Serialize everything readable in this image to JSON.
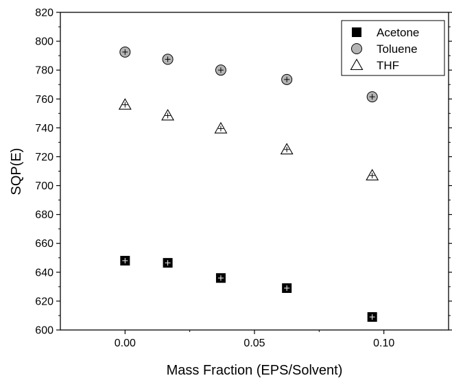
{
  "chart_data": {
    "type": "scatter",
    "title": "",
    "xlabel": "Mass Fraction (EPS/Solvent)",
    "ylabel": "SQP(E)",
    "xlim": [
      -0.025,
      0.125
    ],
    "ylim": [
      600,
      820
    ],
    "xticks": [
      0.0,
      0.05,
      0.1
    ],
    "xtick_labels": [
      "0.00",
      "0.05",
      "0.10"
    ],
    "yticks": [
      600,
      620,
      640,
      660,
      680,
      700,
      720,
      740,
      760,
      780,
      800,
      820
    ],
    "ytick_labels": [
      "600",
      "620",
      "640",
      "660",
      "680",
      "700",
      "720",
      "740",
      "760",
      "780",
      "800",
      "820"
    ],
    "grid": false,
    "legend_position": "top-right",
    "x": [
      0.0,
      0.0165,
      0.037,
      0.0625,
      0.0955
    ],
    "series": [
      {
        "name": "Acetone",
        "marker": "square",
        "color": "#000000",
        "values": [
          648,
          646.5,
          636,
          629,
          609
        ]
      },
      {
        "name": "Toluene",
        "marker": "circle",
        "color": "#b4b4b4",
        "values": [
          792.5,
          787.5,
          780,
          773.5,
          761.5
        ]
      },
      {
        "name": "THF",
        "marker": "triangle",
        "color": "#ffffff",
        "values": [
          756,
          748.5,
          739.5,
          725,
          707
        ]
      }
    ]
  }
}
